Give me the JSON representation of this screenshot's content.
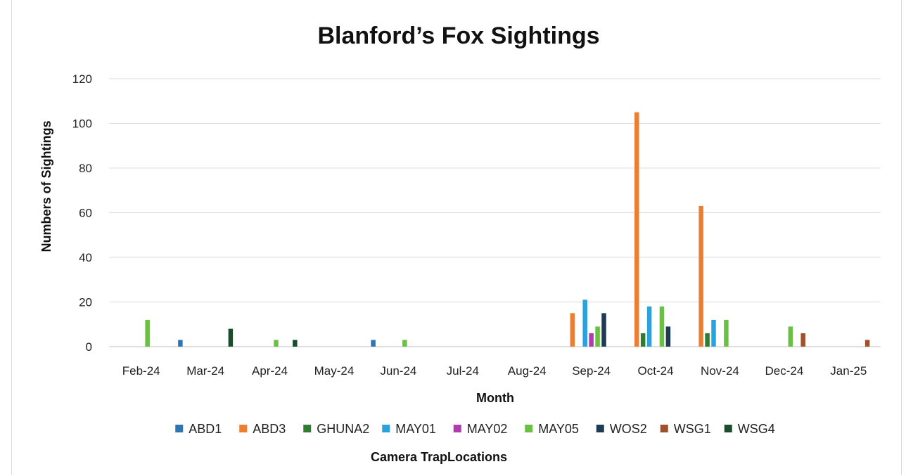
{
  "chart_data": {
    "type": "bar",
    "title": "Blanford’s Fox Sightings",
    "xlabel": "Month",
    "ylabel": "Numbers of Sightings",
    "legend_title": "Camera TrapLocations",
    "legend_position": "bottom",
    "grid": true,
    "ylim": [
      0,
      120
    ],
    "yticks": [
      0,
      20,
      40,
      60,
      80,
      100,
      120
    ],
    "categories": [
      "Feb-24",
      "Mar-24",
      "Apr-24",
      "May-24",
      "Jun-24",
      "Jul-24",
      "Aug-24",
      "Sep-24",
      "Oct-24",
      "Nov-24",
      "Dec-24",
      "Jan-25"
    ],
    "series": [
      {
        "name": "ABD1",
        "color": "#2e75b6",
        "values": [
          0,
          3,
          0,
          0,
          3,
          0,
          0,
          0,
          0,
          0,
          0,
          0
        ]
      },
      {
        "name": "ABD3",
        "color": "#ed7d31",
        "values": [
          0,
          0,
          0,
          0,
          0,
          0,
          0,
          15,
          105,
          63,
          0,
          0
        ]
      },
      {
        "name": "GHUNA2",
        "color": "#2e7d32",
        "values": [
          0,
          0,
          0,
          0,
          0,
          0,
          0,
          0,
          6,
          6,
          0,
          0
        ]
      },
      {
        "name": "MAY01",
        "color": "#29a3e0",
        "values": [
          0,
          0,
          0,
          0,
          0,
          0,
          0,
          21,
          18,
          12,
          0,
          0
        ]
      },
      {
        "name": "MAY02",
        "color": "#b23ab0",
        "values": [
          0,
          0,
          0,
          0,
          0,
          0,
          0,
          6,
          0,
          0,
          0,
          0
        ]
      },
      {
        "name": "MAY05",
        "color": "#6abf45",
        "values": [
          12,
          0,
          3,
          0,
          3,
          0,
          0,
          9,
          18,
          12,
          9,
          0
        ]
      },
      {
        "name": "WOS2",
        "color": "#1f3a54",
        "values": [
          0,
          0,
          0,
          0,
          0,
          0,
          0,
          15,
          9,
          0,
          0,
          0
        ]
      },
      {
        "name": "WSG1",
        "color": "#a0502a",
        "values": [
          0,
          0,
          0,
          0,
          0,
          0,
          0,
          0,
          0,
          0,
          6,
          3
        ]
      },
      {
        "name": "WSG4",
        "color": "#1b4d2b",
        "values": [
          0,
          8,
          3,
          0,
          0,
          0,
          0,
          0,
          0,
          0,
          0,
          0
        ]
      }
    ]
  }
}
